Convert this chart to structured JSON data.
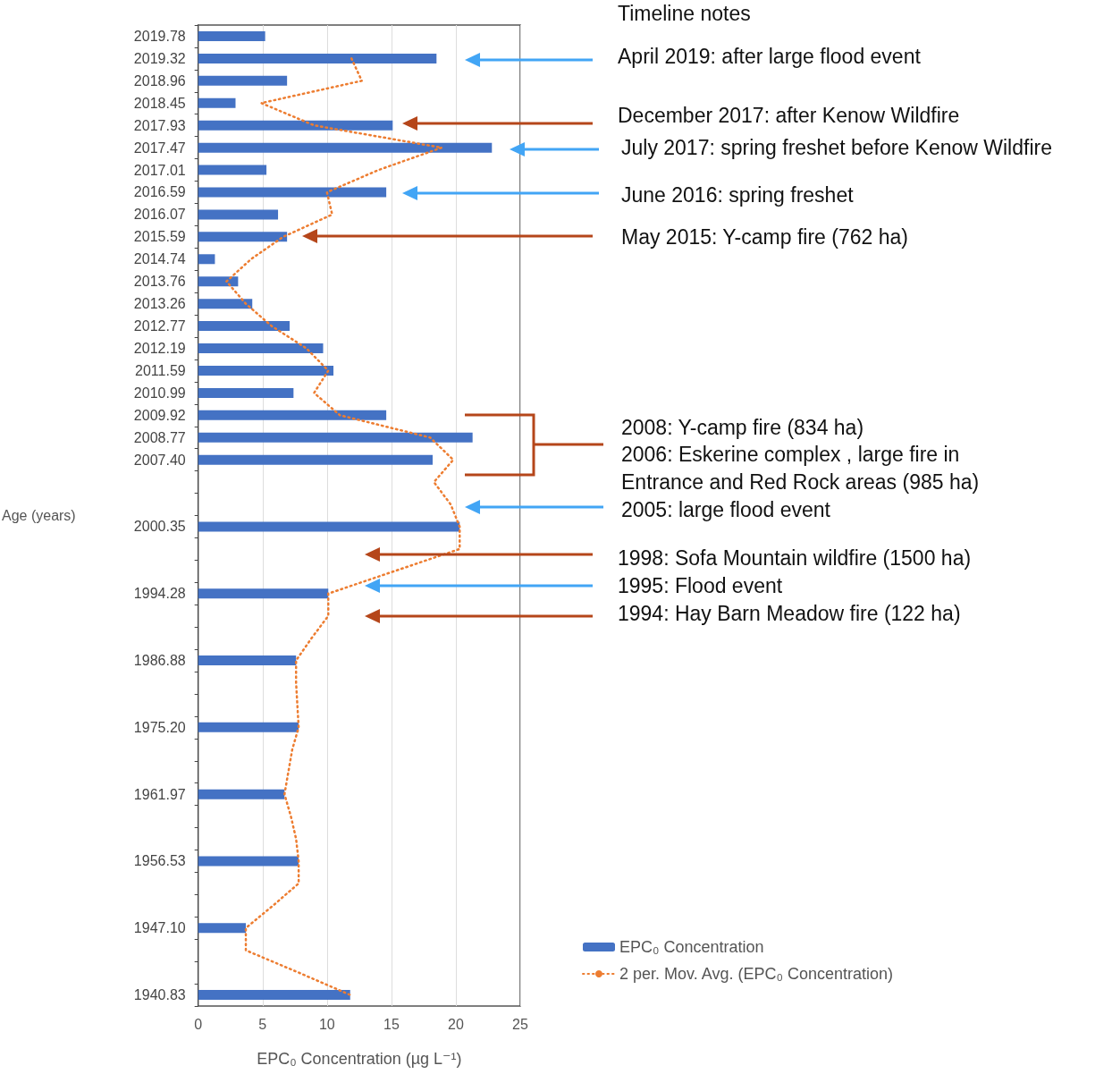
{
  "chart_data": {
    "type": "bar",
    "orientation": "horizontal",
    "categories": [
      "2019.78",
      "2019.32",
      "2018.96",
      "2018.45",
      "2017.93",
      "2017.47",
      "2017.01",
      "2016.59",
      "2016.07",
      "2015.59",
      "2014.74",
      "2013.76",
      "2013.26",
      "2012.77",
      "2012.19",
      "2011.59",
      "2010.99",
      "2009.92",
      "2008.77",
      "2007.40",
      null,
      null,
      "2000.35",
      null,
      null,
      "1994.28",
      null,
      null,
      "1986.88",
      null,
      null,
      "1975.20",
      null,
      null,
      "1961.97",
      null,
      null,
      "1956.53",
      null,
      null,
      "1947.10",
      null,
      null,
      "1940.83"
    ],
    "series": [
      {
        "name": "EPC₀ Concentration",
        "color": "#4472c4",
        "values": [
          5.2,
          18.5,
          6.9,
          2.9,
          15.1,
          22.8,
          5.3,
          14.6,
          6.2,
          6.9,
          1.3,
          3.1,
          4.2,
          7.1,
          9.7,
          10.5,
          7.4,
          14.6,
          21.3,
          18.2,
          null,
          null,
          20.3,
          null,
          null,
          10.1,
          null,
          null,
          7.6,
          null,
          null,
          7.8,
          null,
          null,
          6.7,
          null,
          null,
          7.8,
          null,
          null,
          3.7,
          null,
          null,
          11.8
        ]
      },
      {
        "name": "2 per. Mov. Avg. (EPC₀ Concentration)",
        "type": "line",
        "color": "#ed7d31",
        "line_style": "dotted",
        "marker": "none",
        "values": [
          null,
          11.9,
          12.7,
          4.9,
          9.0,
          18.9,
          14.0,
          10.0,
          10.4,
          6.6,
          4.1,
          2.2,
          3.7,
          5.7,
          8.4,
          10.1,
          9.0,
          11.0,
          18.0,
          19.8,
          18.3,
          19.6,
          20.3,
          20.3,
          15.2,
          10.1,
          10.1,
          8.8,
          7.6,
          7.6,
          7.7,
          7.8,
          7.3,
          7.0,
          6.7,
          7.2,
          7.6,
          7.8,
          7.8,
          5.8,
          3.7,
          3.7,
          7.8,
          11.8
        ]
      }
    ],
    "xlim": [
      0,
      25
    ],
    "xticks": [
      0,
      5,
      10,
      15,
      20,
      25
    ],
    "xlabel": "EPC₀ Concentration (µg L⁻¹)",
    "ylabel": "Age (years)",
    "grid": "x",
    "legend": "bottom right",
    "annotations": [
      "Timeline notes",
      "April 2019: after large flood event",
      "December 2017: after Kenow Wildfire",
      "July 2017: spring freshet before Kenow Wildfire",
      "June 2016: spring freshet",
      "May 2015: Y-camp fire (762 ha)",
      "2008: Y-camp fire (834 ha)",
      "2006: Eskerine complex , large fire in Entrance and Red Rock areas (985 ha)",
      "2005: large flood event",
      "1998: Sofa Mountain wildfire (1500 ha)",
      "1995: Flood event",
      "1994: Hay Barn Meadow fire (122 ha)"
    ]
  }
}
